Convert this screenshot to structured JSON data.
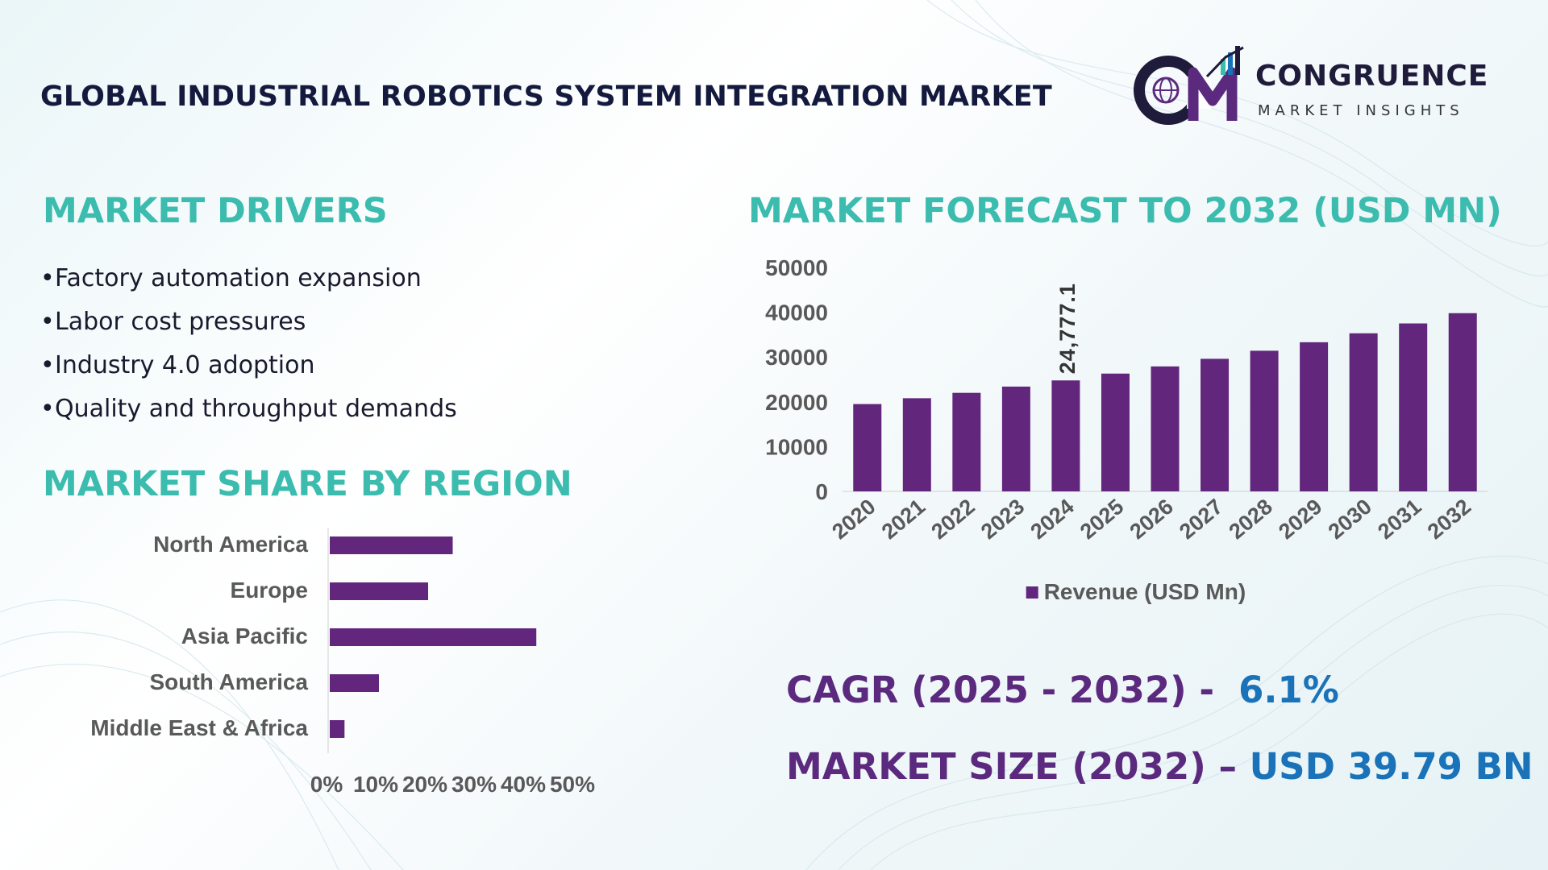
{
  "title": "GLOBAL INDUSTRIAL ROBOTICS SYSTEM INTEGRATION MARKET",
  "logo": {
    "name": "CONGRUENCE",
    "tagline": "MARKET INSIGHTS"
  },
  "drivers": {
    "title": "MARKET DRIVERS",
    "items": [
      "Factory automation expansion",
      "Labor cost pressures",
      "Industry 4.0 adoption",
      "Quality and throughput demands"
    ]
  },
  "colors": {
    "accent": "#3bbcae",
    "bar": "#62267d",
    "kpi_label": "#5b2a7e",
    "kpi_value": "#1a73b8",
    "title": "#141a3d"
  },
  "chart_data": [
    {
      "type": "bar",
      "orientation": "horizontal",
      "title": "MARKET SHARE BY REGION",
      "categories": [
        "North America",
        "Europe",
        "Asia Pacific",
        "South America",
        "Middle East & Africa"
      ],
      "values": [
        25,
        20,
        42,
        10,
        3
      ],
      "unit": "%",
      "xlim": [
        0,
        50
      ],
      "xticks": [
        "0%",
        "10%",
        "20%",
        "30%",
        "40%",
        "50%"
      ],
      "grid": false
    },
    {
      "type": "bar",
      "title": "MARKET FORECAST TO 2032 (USD MN)",
      "categories": [
        "2020",
        "2021",
        "2022",
        "2023",
        "2024",
        "2025",
        "2026",
        "2027",
        "2028",
        "2029",
        "2030",
        "2031",
        "2032"
      ],
      "series": [
        {
          "name": "Revenue (USD Mn)",
          "values": [
            19500,
            20800,
            22000,
            23400,
            24777.1,
            26300,
            27900,
            29600,
            31400,
            33300,
            35300,
            37500,
            39790
          ]
        }
      ],
      "data_labels": [
        {
          "category": "2024",
          "text": "24,777.1"
        }
      ],
      "ylim": [
        0,
        50000
      ],
      "yticks": [
        "0",
        "10000",
        "20000",
        "30000",
        "40000",
        "50000"
      ],
      "legend": "bottom",
      "grid": false
    }
  ],
  "kpis": {
    "cagr_label": "CAGR (2025 - 2032) -",
    "cagr_value": "6.1%",
    "size_label": "MARKET SIZE (2032) –",
    "size_value": "USD 39.79 BN"
  }
}
